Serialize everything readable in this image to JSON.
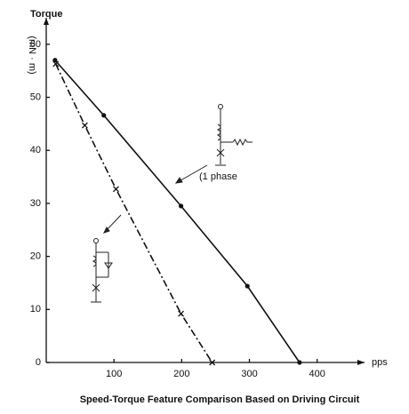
{
  "chart_data": {
    "type": "line",
    "title": "Speed-Torque Feature Comparison Based on Driving Circuit",
    "y_label": "Torque",
    "y_unit": "(mN · m)",
    "x_label": "pps",
    "annotation": "(1 phase",
    "xlim": [
      0,
      470
    ],
    "ylim": [
      0,
      65
    ],
    "xticks": [
      100,
      200,
      300,
      400
    ],
    "yticks": [
      0,
      10,
      20,
      30,
      40,
      50,
      60
    ],
    "series": [
      {
        "color": "#111111",
        "linestyle": "solid",
        "marker": "circle",
        "x": [
          13,
          85,
          199,
          297,
          374
        ],
        "values": [
          57,
          46.6,
          29.5,
          14.4,
          0
        ]
      },
      {
        "color": "#111111",
        "linestyle": "dashdot",
        "marker": "x",
        "x": [
          14,
          57,
          103,
          199,
          245
        ],
        "values": [
          56.3,
          44.7,
          32.7,
          9.2,
          0
        ]
      }
    ]
  }
}
